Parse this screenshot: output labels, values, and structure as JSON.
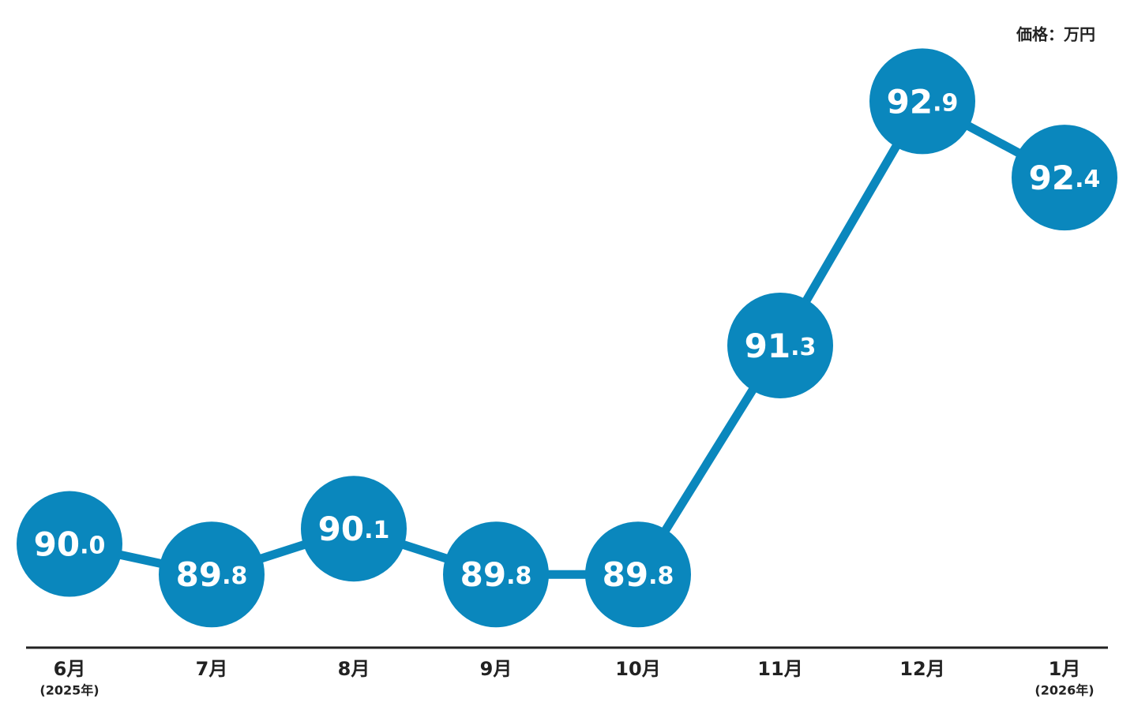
{
  "chart_data": {
    "type": "line",
    "unit_label": "価格：万円",
    "categories": [
      "6月",
      "7月",
      "8月",
      "9月",
      "10月",
      "11月",
      "12月",
      "1月"
    ],
    "category_notes": [
      "(2025年)",
      null,
      null,
      null,
      null,
      null,
      null,
      "(2026年)"
    ],
    "values": [
      90.0,
      89.8,
      90.1,
      89.8,
      89.8,
      91.3,
      92.9,
      92.4
    ],
    "value_labels": [
      "90.0",
      "89.8",
      "90.1",
      "89.8",
      "89.8",
      "91.3",
      "92.9",
      "92.4"
    ],
    "color": "#0a87bd",
    "ylim": [
      89.3,
      93.0
    ]
  }
}
